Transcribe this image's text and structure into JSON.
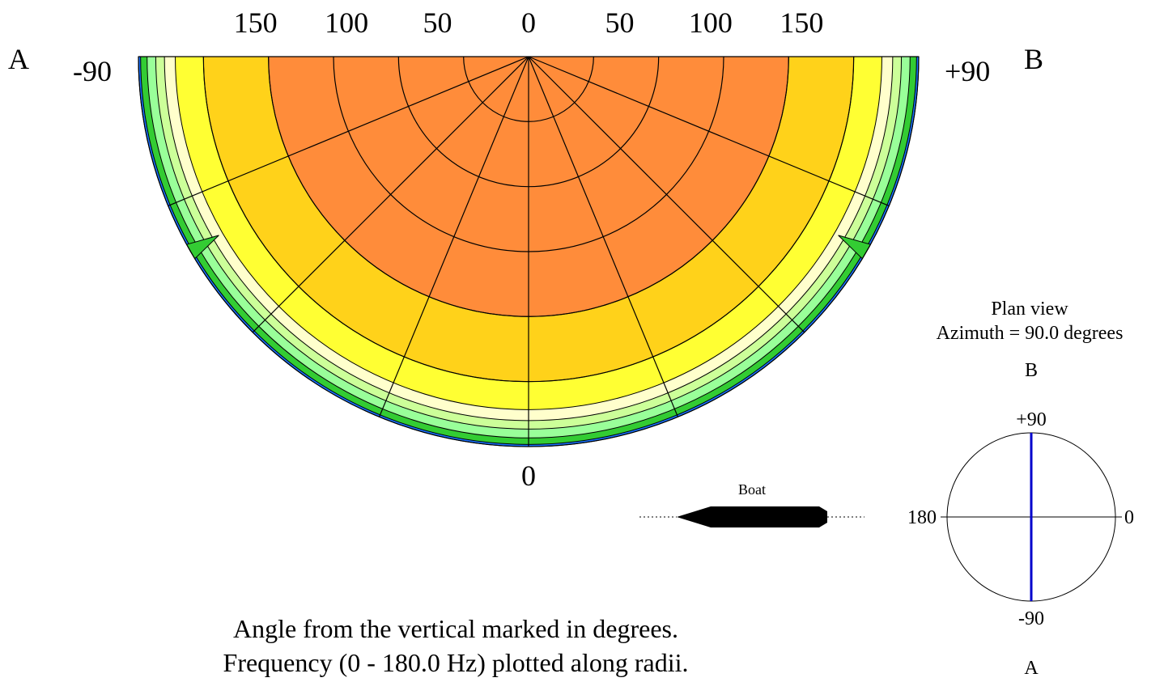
{
  "chart_data": [
    {
      "type": "heatmap",
      "projection": "polar-semicircle",
      "theta_labels_deg": [
        "150",
        "100",
        "50",
        "0",
        "50",
        "100",
        "150"
      ],
      "theta_tick_values_deg": [
        -150,
        -100,
        -50,
        0,
        50,
        100,
        150
      ],
      "side_labels": {
        "left_letter": "A",
        "left_angle": "-90",
        "right_letter": "B",
        "right_angle": "+90",
        "bottom_angle": "0"
      },
      "theta_range_deg": [
        -90,
        90
      ],
      "radius_range_hz": [
        0,
        180.0
      ],
      "radial_rings_hz": [
        30,
        60,
        90,
        120,
        150,
        180
      ],
      "spokes_deg": [
        -67.5,
        -45,
        -22.5,
        0,
        22.5,
        45,
        67.5
      ],
      "levels": [
        {
          "color": "#ff8c3a",
          "outer_radius_hz": 120
        },
        {
          "color": "#ffd21a",
          "outer_radius_hz": 150
        },
        {
          "color": "#ffff33",
          "outer_radius_hz": 163
        },
        {
          "color": "#ffffcc",
          "outer_radius_hz": 168
        },
        {
          "color": "#ccff99",
          "outer_radius_hz": 172
        },
        {
          "color": "#99ff99",
          "outer_radius_hz": 176
        },
        {
          "color": "#33cc33",
          "outer_radius_hz": 179
        },
        {
          "color": "#1a73ff",
          "outer_radius_hz": 180
        }
      ],
      "nulls_deg": [
        -60,
        60
      ],
      "grid": true
    },
    {
      "type": "diagram",
      "plan_view": {
        "title": "Plan view",
        "azimuth_text": "Azimuth =  90.0 degrees",
        "top_letter": "B",
        "bottom_letter": "A",
        "top_label": "+90",
        "bottom_label": "-90",
        "left_label": "180",
        "right_label": "0",
        "azimuth_deg": 90.0,
        "line_color": "#0000cc"
      }
    }
  ],
  "boat": {
    "label": "Boat"
  },
  "caption": {
    "line1": "Angle from the vertical marked in degrees.",
    "line2": "Frequency (0 - 180.0 Hz) plotted along radii."
  }
}
